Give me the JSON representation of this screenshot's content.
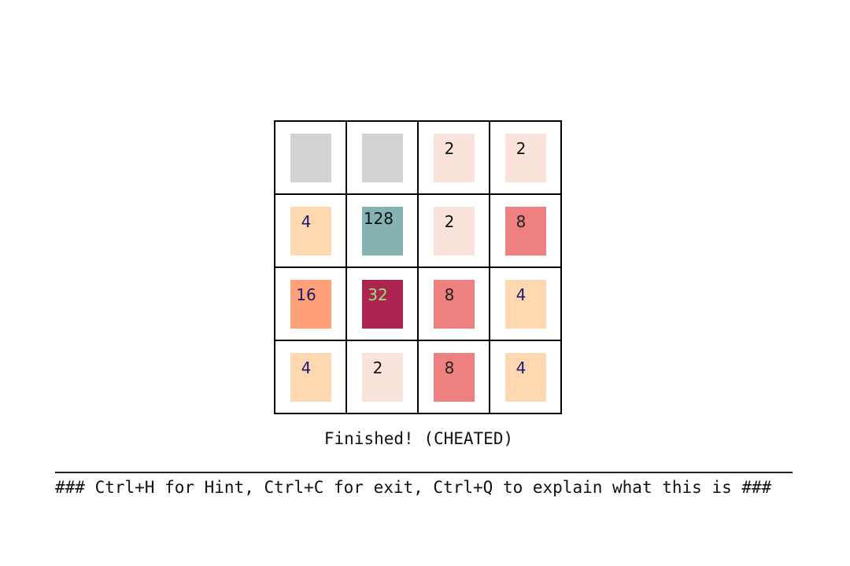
{
  "board": {
    "rows": [
      [
        {
          "value": "",
          "bg": "#d3d3d3",
          "fg": "#111111"
        },
        {
          "value": "",
          "bg": "#d3d3d3",
          "fg": "#111111"
        },
        {
          "value": "2",
          "bg": "#f9e3da",
          "fg": "#111111"
        },
        {
          "value": "2",
          "bg": "#f9e3da",
          "fg": "#111111"
        }
      ],
      [
        {
          "value": "4",
          "bg": "#fed8b0",
          "fg": "#1a1a6e"
        },
        {
          "value": "128",
          "bg": "#85b3b1",
          "fg": "#111111"
        },
        {
          "value": "2",
          "bg": "#f9e3da",
          "fg": "#111111"
        },
        {
          "value": "8",
          "bg": "#ef8080",
          "fg": "#222222"
        }
      ],
      [
        {
          "value": "16",
          "bg": "#ffa079",
          "fg": "#1a1a6e"
        },
        {
          "value": "32",
          "bg": "#ac2450",
          "fg": "#9ee07a"
        },
        {
          "value": "8",
          "bg": "#ef8080",
          "fg": "#222222"
        },
        {
          "value": "4",
          "bg": "#fed8b0",
          "fg": "#1a1a6e"
        }
      ],
      [
        {
          "value": "4",
          "bg": "#fed8b0",
          "fg": "#1a1a6e"
        },
        {
          "value": "2",
          "bg": "#f9e3da",
          "fg": "#111111"
        },
        {
          "value": "8",
          "bg": "#ef8080",
          "fg": "#222222"
        },
        {
          "value": "4",
          "bg": "#fed8b0",
          "fg": "#1a1a6e"
        }
      ]
    ]
  },
  "status": "Finished! (CHEATED)",
  "help": "### Ctrl+H for Hint, Ctrl+C for exit, Ctrl+Q to explain what this is ###"
}
